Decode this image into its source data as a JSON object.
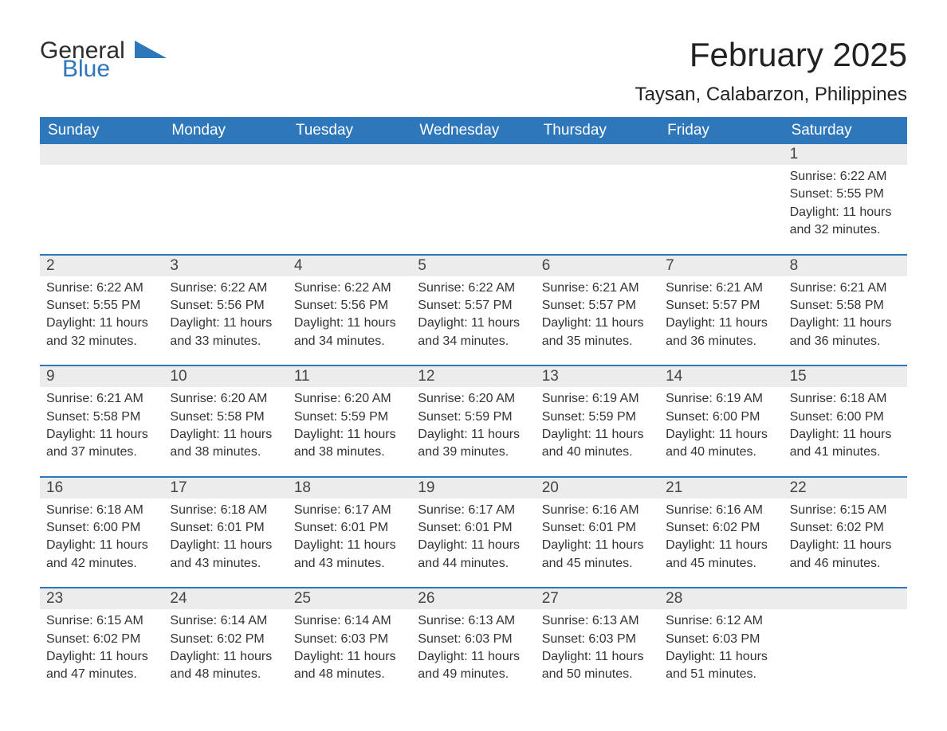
{
  "brand": {
    "part1": "General",
    "part2": "Blue"
  },
  "title": "February 2025",
  "subtitle": "Taysan, Calabarzon, Philippines",
  "colors": {
    "header_bg": "#2e77bb",
    "header_text": "#ffffff",
    "daynum_bg": "#ececec",
    "text": "#333333",
    "page_bg": "#ffffff",
    "week_divider": "#2e77bb"
  },
  "typography": {
    "title_fontsize": 42,
    "subtitle_fontsize": 24,
    "dow_fontsize": 19,
    "daynum_fontsize": 19,
    "body_fontsize": 16,
    "logo_fontsize": 30
  },
  "days_of_week": [
    "Sunday",
    "Monday",
    "Tuesday",
    "Wednesday",
    "Thursday",
    "Friday",
    "Saturday"
  ],
  "weeks": [
    [
      null,
      null,
      null,
      null,
      null,
      null,
      {
        "n": "1",
        "sunrise": "Sunrise: 6:22 AM",
        "sunset": "Sunset: 5:55 PM",
        "dl1": "Daylight: 11 hours",
        "dl2": "and 32 minutes."
      }
    ],
    [
      {
        "n": "2",
        "sunrise": "Sunrise: 6:22 AM",
        "sunset": "Sunset: 5:55 PM",
        "dl1": "Daylight: 11 hours",
        "dl2": "and 32 minutes."
      },
      {
        "n": "3",
        "sunrise": "Sunrise: 6:22 AM",
        "sunset": "Sunset: 5:56 PM",
        "dl1": "Daylight: 11 hours",
        "dl2": "and 33 minutes."
      },
      {
        "n": "4",
        "sunrise": "Sunrise: 6:22 AM",
        "sunset": "Sunset: 5:56 PM",
        "dl1": "Daylight: 11 hours",
        "dl2": "and 34 minutes."
      },
      {
        "n": "5",
        "sunrise": "Sunrise: 6:22 AM",
        "sunset": "Sunset: 5:57 PM",
        "dl1": "Daylight: 11 hours",
        "dl2": "and 34 minutes."
      },
      {
        "n": "6",
        "sunrise": "Sunrise: 6:21 AM",
        "sunset": "Sunset: 5:57 PM",
        "dl1": "Daylight: 11 hours",
        "dl2": "and 35 minutes."
      },
      {
        "n": "7",
        "sunrise": "Sunrise: 6:21 AM",
        "sunset": "Sunset: 5:57 PM",
        "dl1": "Daylight: 11 hours",
        "dl2": "and 36 minutes."
      },
      {
        "n": "8",
        "sunrise": "Sunrise: 6:21 AM",
        "sunset": "Sunset: 5:58 PM",
        "dl1": "Daylight: 11 hours",
        "dl2": "and 36 minutes."
      }
    ],
    [
      {
        "n": "9",
        "sunrise": "Sunrise: 6:21 AM",
        "sunset": "Sunset: 5:58 PM",
        "dl1": "Daylight: 11 hours",
        "dl2": "and 37 minutes."
      },
      {
        "n": "10",
        "sunrise": "Sunrise: 6:20 AM",
        "sunset": "Sunset: 5:58 PM",
        "dl1": "Daylight: 11 hours",
        "dl2": "and 38 minutes."
      },
      {
        "n": "11",
        "sunrise": "Sunrise: 6:20 AM",
        "sunset": "Sunset: 5:59 PM",
        "dl1": "Daylight: 11 hours",
        "dl2": "and 38 minutes."
      },
      {
        "n": "12",
        "sunrise": "Sunrise: 6:20 AM",
        "sunset": "Sunset: 5:59 PM",
        "dl1": "Daylight: 11 hours",
        "dl2": "and 39 minutes."
      },
      {
        "n": "13",
        "sunrise": "Sunrise: 6:19 AM",
        "sunset": "Sunset: 5:59 PM",
        "dl1": "Daylight: 11 hours",
        "dl2": "and 40 minutes."
      },
      {
        "n": "14",
        "sunrise": "Sunrise: 6:19 AM",
        "sunset": "Sunset: 6:00 PM",
        "dl1": "Daylight: 11 hours",
        "dl2": "and 40 minutes."
      },
      {
        "n": "15",
        "sunrise": "Sunrise: 6:18 AM",
        "sunset": "Sunset: 6:00 PM",
        "dl1": "Daylight: 11 hours",
        "dl2": "and 41 minutes."
      }
    ],
    [
      {
        "n": "16",
        "sunrise": "Sunrise: 6:18 AM",
        "sunset": "Sunset: 6:00 PM",
        "dl1": "Daylight: 11 hours",
        "dl2": "and 42 minutes."
      },
      {
        "n": "17",
        "sunrise": "Sunrise: 6:18 AM",
        "sunset": "Sunset: 6:01 PM",
        "dl1": "Daylight: 11 hours",
        "dl2": "and 43 minutes."
      },
      {
        "n": "18",
        "sunrise": "Sunrise: 6:17 AM",
        "sunset": "Sunset: 6:01 PM",
        "dl1": "Daylight: 11 hours",
        "dl2": "and 43 minutes."
      },
      {
        "n": "19",
        "sunrise": "Sunrise: 6:17 AM",
        "sunset": "Sunset: 6:01 PM",
        "dl1": "Daylight: 11 hours",
        "dl2": "and 44 minutes."
      },
      {
        "n": "20",
        "sunrise": "Sunrise: 6:16 AM",
        "sunset": "Sunset: 6:01 PM",
        "dl1": "Daylight: 11 hours",
        "dl2": "and 45 minutes."
      },
      {
        "n": "21",
        "sunrise": "Sunrise: 6:16 AM",
        "sunset": "Sunset: 6:02 PM",
        "dl1": "Daylight: 11 hours",
        "dl2": "and 45 minutes."
      },
      {
        "n": "22",
        "sunrise": "Sunrise: 6:15 AM",
        "sunset": "Sunset: 6:02 PM",
        "dl1": "Daylight: 11 hours",
        "dl2": "and 46 minutes."
      }
    ],
    [
      {
        "n": "23",
        "sunrise": "Sunrise: 6:15 AM",
        "sunset": "Sunset: 6:02 PM",
        "dl1": "Daylight: 11 hours",
        "dl2": "and 47 minutes."
      },
      {
        "n": "24",
        "sunrise": "Sunrise: 6:14 AM",
        "sunset": "Sunset: 6:02 PM",
        "dl1": "Daylight: 11 hours",
        "dl2": "and 48 minutes."
      },
      {
        "n": "25",
        "sunrise": "Sunrise: 6:14 AM",
        "sunset": "Sunset: 6:03 PM",
        "dl1": "Daylight: 11 hours",
        "dl2": "and 48 minutes."
      },
      {
        "n": "26",
        "sunrise": "Sunrise: 6:13 AM",
        "sunset": "Sunset: 6:03 PM",
        "dl1": "Daylight: 11 hours",
        "dl2": "and 49 minutes."
      },
      {
        "n": "27",
        "sunrise": "Sunrise: 6:13 AM",
        "sunset": "Sunset: 6:03 PM",
        "dl1": "Daylight: 11 hours",
        "dl2": "and 50 minutes."
      },
      {
        "n": "28",
        "sunrise": "Sunrise: 6:12 AM",
        "sunset": "Sunset: 6:03 PM",
        "dl1": "Daylight: 11 hours",
        "dl2": "and 51 minutes."
      },
      null
    ]
  ]
}
